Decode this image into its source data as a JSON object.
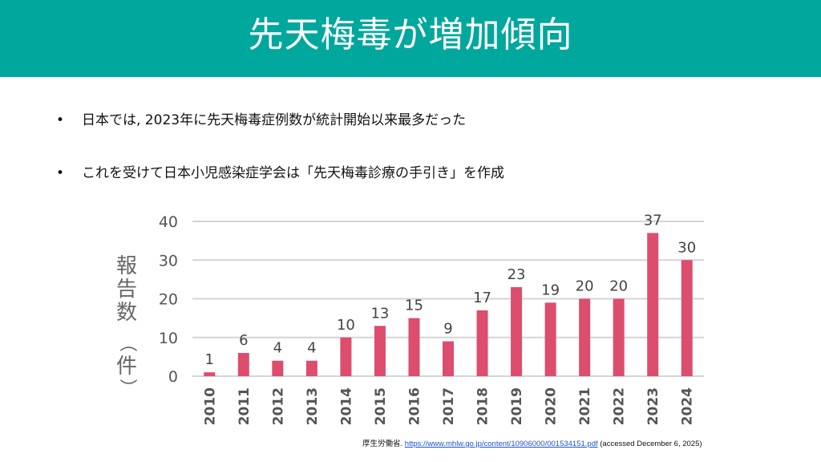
{
  "header": {
    "title": "先天梅毒が増加傾向",
    "background_color": "#00A79D"
  },
  "bullets": [
    "日本では, 2023年に先天梅毒症例数が統計開始以来最多だった",
    "これを受けて日本小児感染症学会は「先天梅毒診療の手引き」を作成"
  ],
  "bullet_symbol": "•",
  "chart_data": {
    "type": "bar",
    "categories": [
      "2010",
      "2011",
      "2012",
      "2013",
      "2014",
      "2015",
      "2016",
      "2017",
      "2018",
      "2019",
      "2020",
      "2021",
      "2022",
      "2023",
      "2024"
    ],
    "values": [
      1,
      6,
      4,
      4,
      10,
      13,
      15,
      9,
      17,
      23,
      19,
      20,
      20,
      37,
      30
    ],
    "ylabel_chars": [
      "報",
      "告",
      "数"
    ],
    "ylabel_unit": "件",
    "ylabel_paren_open": "（",
    "ylabel_paren_close": "）",
    "ylim": [
      0,
      40
    ],
    "yticks": [
      0,
      10,
      20,
      30,
      40
    ],
    "grid": true,
    "bar_color": "#DC4D6E"
  },
  "source": {
    "prefix": "厚生労働省.",
    "url_text": "https://www.mhlw.go.jp/content/10906000/001534151.pdf",
    "suffix": "(accessed December 6, 2025)"
  }
}
